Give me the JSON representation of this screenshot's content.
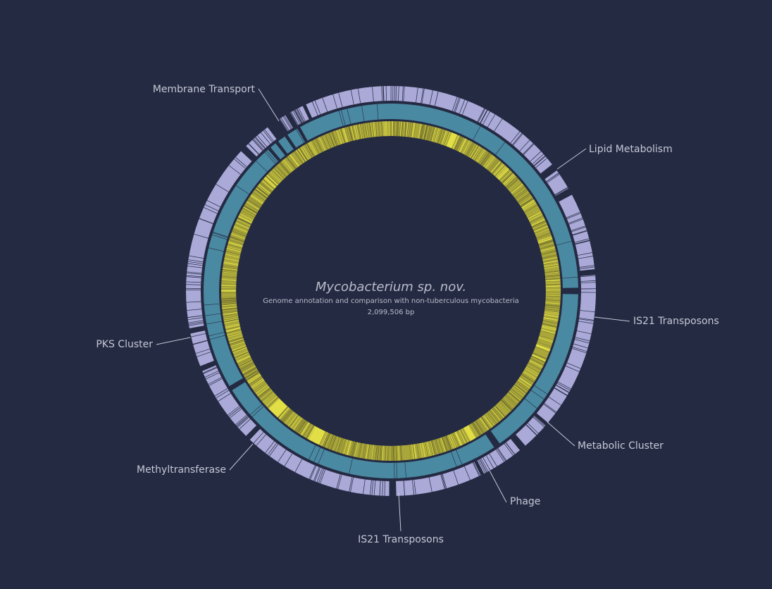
{
  "title": "Mycobacterium sp. nov.",
  "subtitle": "Genome annotation and comparison with non-tuberculous mycobacteria",
  "genome_size": "2,099,506 bp",
  "colors": {
    "background": "#242a42",
    "outer_track": "#aaa9d8",
    "middle_track": "#4a89a2",
    "inner_track": "#a9a63a",
    "inner_highlight": "#e2df46",
    "text": "#c5c8d6"
  },
  "regions": [
    {
      "label": "Membrane Transport"
    },
    {
      "label": "Lipid Metabolism"
    },
    {
      "label": "IS21 Transposons"
    },
    {
      "label": "Metabolic Cluster"
    },
    {
      "label": "Phage"
    },
    {
      "label": "IS21 Transposons"
    },
    {
      "label": "Methyltransferase"
    },
    {
      "label": "PKS Cluster"
    }
  ]
}
